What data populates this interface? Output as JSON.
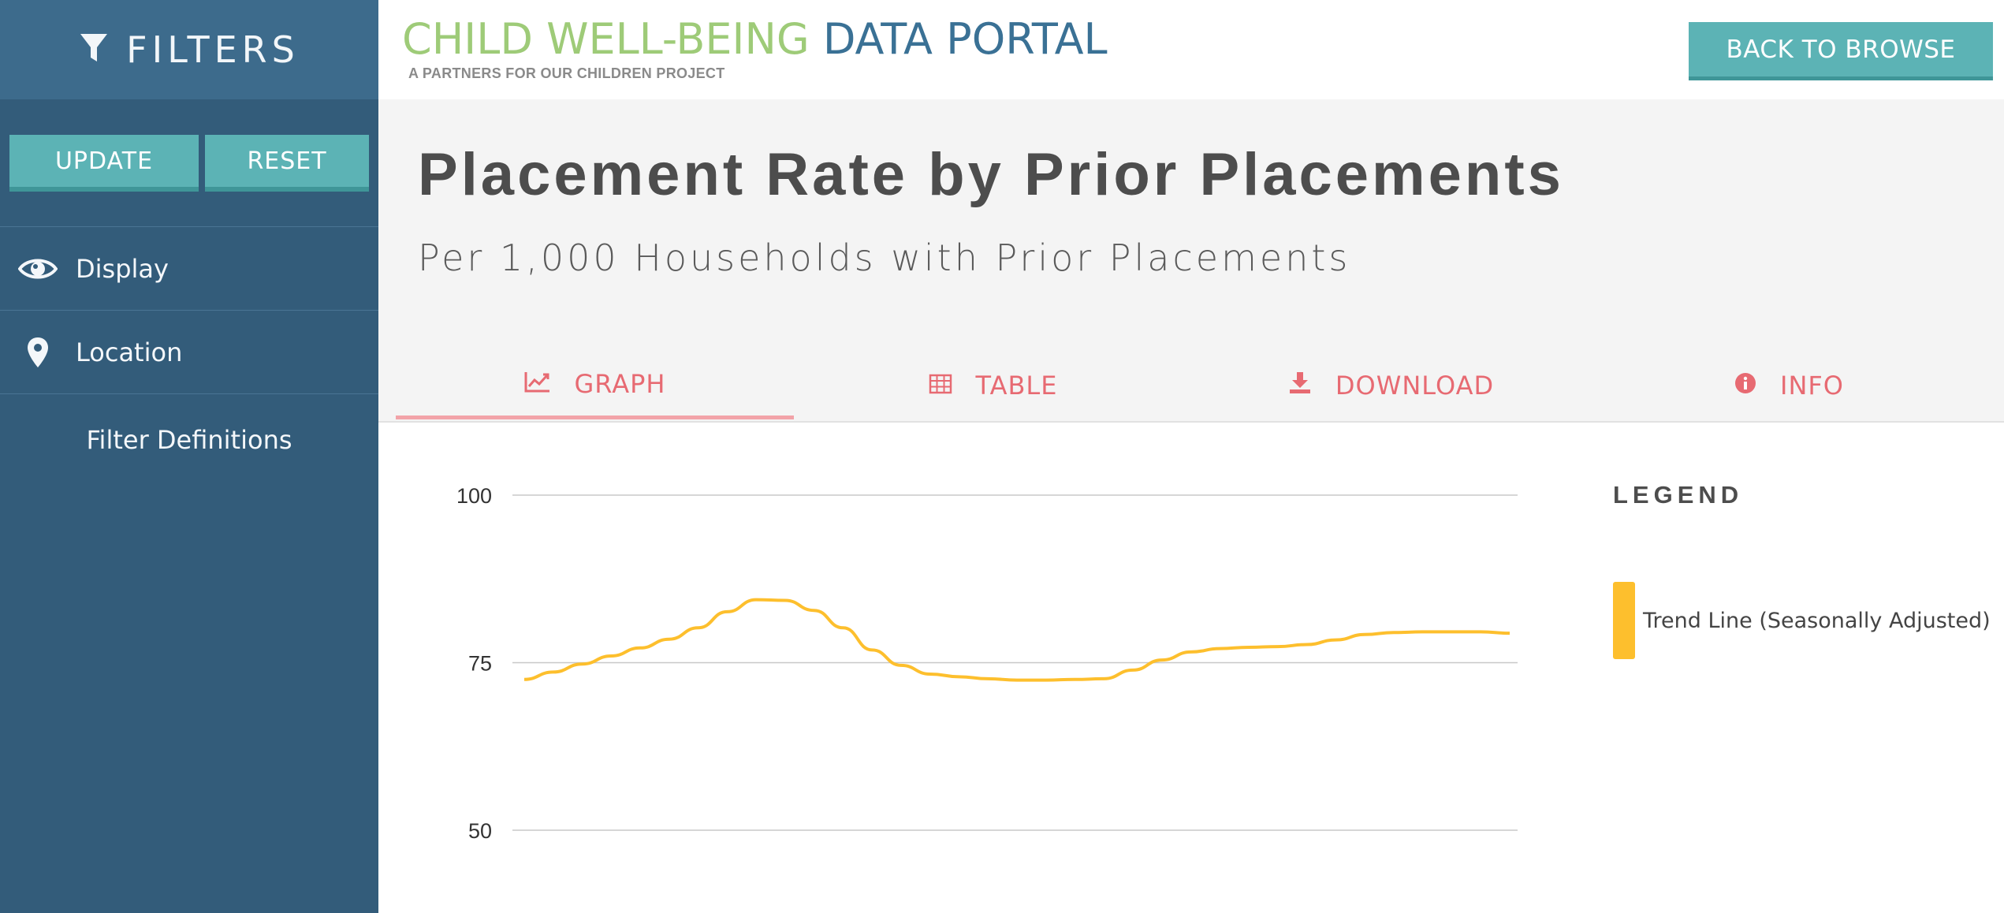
{
  "sidebar": {
    "title": "FILTERS",
    "update_label": "UPDATE",
    "reset_label": "RESET",
    "items": [
      {
        "label": "Display",
        "icon": "eye-icon"
      },
      {
        "label": "Location",
        "icon": "map-pin-icon"
      }
    ],
    "definitions_label": "Filter Definitions"
  },
  "header": {
    "brand_green": "CHILD WELL-BEING",
    "brand_blue": "DATA PORTAL",
    "brand_sub": "A PARTNERS FOR OUR CHILDREN PROJECT",
    "back_label": "BACK TO BROWSE"
  },
  "page": {
    "title": "Placement Rate by Prior Placements",
    "subtitle": "Per 1,000 Households with Prior Placements"
  },
  "tabs": [
    {
      "label": "GRAPH",
      "icon": "line-chart-icon",
      "active": true
    },
    {
      "label": "TABLE",
      "icon": "table-icon",
      "active": false
    },
    {
      "label": "DOWNLOAD",
      "icon": "download-icon",
      "active": false
    },
    {
      "label": "INFO",
      "icon": "info-icon",
      "active": false
    }
  ],
  "colors": {
    "sidebar": "#335c7a",
    "accent_teal": "#5cb3b5",
    "tab_red": "#e76a72",
    "series": "#fdbf2d"
  },
  "chart_data": {
    "type": "line",
    "title": "Placement Rate by Prior Placements",
    "ylabel": "Per 1,000 Households with Prior Placements",
    "ylim": [
      50,
      100
    ],
    "yticks": [
      100,
      75,
      50
    ],
    "grid": true,
    "legend_title": "LEGEND",
    "legend_position": "right",
    "series": [
      {
        "name": "Trend Line (Seasonally Adjusted)",
        "values": [
          72.5,
          73.6,
          74.8,
          76.0,
          77.2,
          78.5,
          80.2,
          82.6,
          84.4,
          84.3,
          82.8,
          80.2,
          76.9,
          74.6,
          73.3,
          72.9,
          72.6,
          72.4,
          72.4,
          72.5,
          72.6,
          73.9,
          75.4,
          76.6,
          77.1,
          77.3,
          77.4,
          77.7,
          78.4,
          79.2,
          79.5,
          79.6,
          79.6,
          79.6,
          79.4
        ]
      }
    ]
  }
}
